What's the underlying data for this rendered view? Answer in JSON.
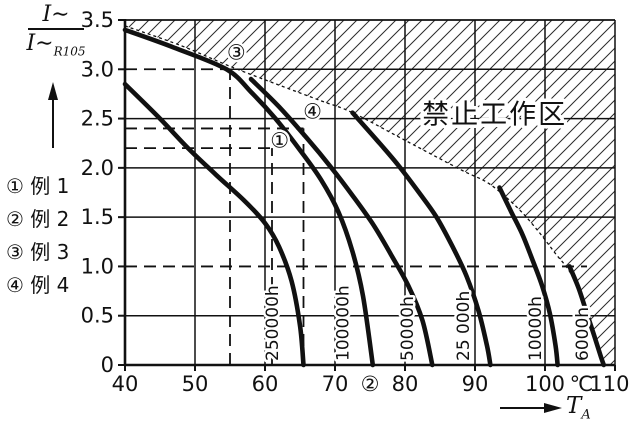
{
  "page": {
    "background": "#ffffff",
    "ink": "#111111"
  },
  "y_axis_title": {
    "numerator": "I∼",
    "denominator": "I∼",
    "denominator_sub": "R105"
  },
  "x_axis_title": {
    "base": "T",
    "sub": "A"
  },
  "legend": {
    "items": [
      {
        "text": "① 例 1"
      },
      {
        "text": "② 例 2"
      },
      {
        "text": "③ 例 3"
      },
      {
        "text": "④ 例 4"
      }
    ]
  },
  "chart_data": {
    "type": "line",
    "title": "",
    "xlabel": "TA (ambient temperature, ℃)",
    "ylabel": "I~ / I~R105 (ripple current ratio)",
    "xlim": [
      40,
      110
    ],
    "ylim": [
      0,
      3.5
    ],
    "grid": {
      "v": [
        50,
        60,
        70,
        80,
        90,
        100
      ],
      "h": [
        0.5,
        1.5,
        2.0,
        2.5,
        3.5
      ],
      "h_partial": [
        {
          "at": 3.0,
          "from": 55,
          "to": 110
        }
      ]
    },
    "x_tick_marks": [
      40,
      50,
      60,
      70,
      80,
      90,
      100,
      110
    ],
    "y_tick_marks": [
      0,
      0.5,
      1.0,
      1.5,
      2.0,
      2.5,
      3.0,
      3.5
    ],
    "x_tick_labels": [
      {
        "text": "40",
        "t": 40
      },
      {
        "text": "50",
        "t": 50
      },
      {
        "text": "60",
        "t": 60
      },
      {
        "text": "70",
        "t": 70
      },
      {
        "text": "②",
        "t": 75
      },
      {
        "text": "80",
        "t": 80
      },
      {
        "text": "90",
        "t": 90
      },
      {
        "text": "100",
        "t": 100
      },
      {
        "text": "℃",
        "t": 105.2
      },
      {
        "text": "110",
        "t": 109.2
      }
    ],
    "y_tick_labels": [
      {
        "text": "0",
        "v": 0
      },
      {
        "text": "0.5",
        "v": 0.5
      },
      {
        "text": "1.0",
        "v": 1.0
      },
      {
        "text": "1.5",
        "v": 1.5
      },
      {
        "text": "2.0",
        "v": 2.0
      },
      {
        "text": "2.5",
        "v": 2.5
      },
      {
        "text": "3.0",
        "v": 3.0
      },
      {
        "text": "3.5",
        "v": 3.5
      }
    ],
    "forbidden_zone_label": "禁止工作区",
    "forbidden_label_pos": {
      "t": 92.8,
      "r": 2.55
    },
    "envelope_points": [
      [
        40,
        3.44
      ],
      [
        48,
        3.24
      ],
      [
        55,
        3.03
      ],
      [
        62,
        2.84
      ],
      [
        68,
        2.68
      ],
      [
        72.5,
        2.56
      ],
      [
        80,
        2.28
      ],
      [
        88,
        1.98
      ],
      [
        92,
        1.84
      ],
      [
        96,
        1.6
      ],
      [
        99,
        1.36
      ],
      [
        101.5,
        1.13
      ],
      [
        103.5,
        0.95
      ],
      [
        105,
        0.72
      ],
      [
        106.4,
        0.48
      ],
      [
        107.5,
        0.22
      ],
      [
        108.4,
        0
      ]
    ],
    "series": [
      {
        "name": "250000h",
        "label_t": 61.0,
        "points": [
          [
            40,
            2.85
          ],
          [
            45,
            2.5
          ],
          [
            49,
            2.2
          ],
          [
            53,
            1.93
          ],
          [
            57,
            1.67
          ],
          [
            60,
            1.44
          ],
          [
            62,
            1.2
          ],
          [
            63.8,
            0.85
          ],
          [
            65,
            0.4
          ],
          [
            65.5,
            0
          ]
        ]
      },
      {
        "name": "100000h",
        "label_t": 71.1,
        "points": [
          [
            40,
            3.4
          ],
          [
            47,
            3.22
          ],
          [
            54.5,
            3.0
          ],
          [
            58,
            2.77
          ],
          [
            61.5,
            2.5
          ],
          [
            65,
            2.18
          ],
          [
            68,
            1.88
          ],
          [
            70.5,
            1.55
          ],
          [
            72.5,
            1.15
          ],
          [
            74,
            0.7
          ],
          [
            75.4,
            0
          ]
        ]
      },
      {
        "name": "50000h",
        "label_t": 80.3,
        "points": [
          [
            58,
            2.9
          ],
          [
            62,
            2.62
          ],
          [
            66,
            2.3
          ],
          [
            69.5,
            2.0
          ],
          [
            72.5,
            1.72
          ],
          [
            75.5,
            1.42
          ],
          [
            78,
            1.12
          ],
          [
            80.5,
            0.8
          ],
          [
            82.5,
            0.45
          ],
          [
            83.9,
            0
          ]
        ]
      },
      {
        "name": "25 000h",
        "label_t": 88.3,
        "points": [
          [
            72.5,
            2.56
          ],
          [
            76,
            2.28
          ],
          [
            79,
            2.03
          ],
          [
            82,
            1.75
          ],
          [
            84.5,
            1.5
          ],
          [
            86.8,
            1.2
          ],
          [
            88.8,
            0.9
          ],
          [
            90.5,
            0.55
          ],
          [
            91.7,
            0.2
          ],
          [
            92.2,
            0
          ]
        ]
      },
      {
        "name": "10000h",
        "label_t": 98.6,
        "points": [
          [
            93.5,
            1.8
          ],
          [
            95.2,
            1.55
          ],
          [
            96.8,
            1.32
          ],
          [
            98.3,
            1.05
          ],
          [
            99.6,
            0.8
          ],
          [
            100.7,
            0.52
          ],
          [
            101.5,
            0.2
          ],
          [
            101.8,
            0
          ]
        ]
      },
      {
        "name": "6000h",
        "label_t": 105.3,
        "points": [
          [
            103.5,
            1.0
          ],
          [
            104.8,
            0.78
          ],
          [
            106,
            0.52
          ],
          [
            107.2,
            0.26
          ],
          [
            108,
            0.08
          ],
          [
            108.4,
            0
          ]
        ]
      }
    ],
    "example_dashed_lines": [
      {
        "orient": "h",
        "at": 3.0,
        "from": 40,
        "to": 55
      },
      {
        "orient": "v",
        "at": 55,
        "from": 0,
        "to": 3.0
      },
      {
        "orient": "h",
        "at": 2.4,
        "from": 40,
        "to": 65.5
      },
      {
        "orient": "v",
        "at": 65.5,
        "from": 0,
        "to": 2.4
      },
      {
        "orient": "h",
        "at": 2.2,
        "from": 40,
        "to": 61
      },
      {
        "orient": "v",
        "at": 61,
        "from": 0,
        "to": 2.2
      },
      {
        "orient": "h",
        "at": 1.0,
        "from": 40,
        "to": 106
      }
    ],
    "markers": [
      {
        "text": "③",
        "t": 55.9,
        "r": 3.17
      },
      {
        "text": "④",
        "t": 66.8,
        "r": 2.57
      },
      {
        "text": "①",
        "t": 62.1,
        "r": 2.28
      }
    ]
  }
}
